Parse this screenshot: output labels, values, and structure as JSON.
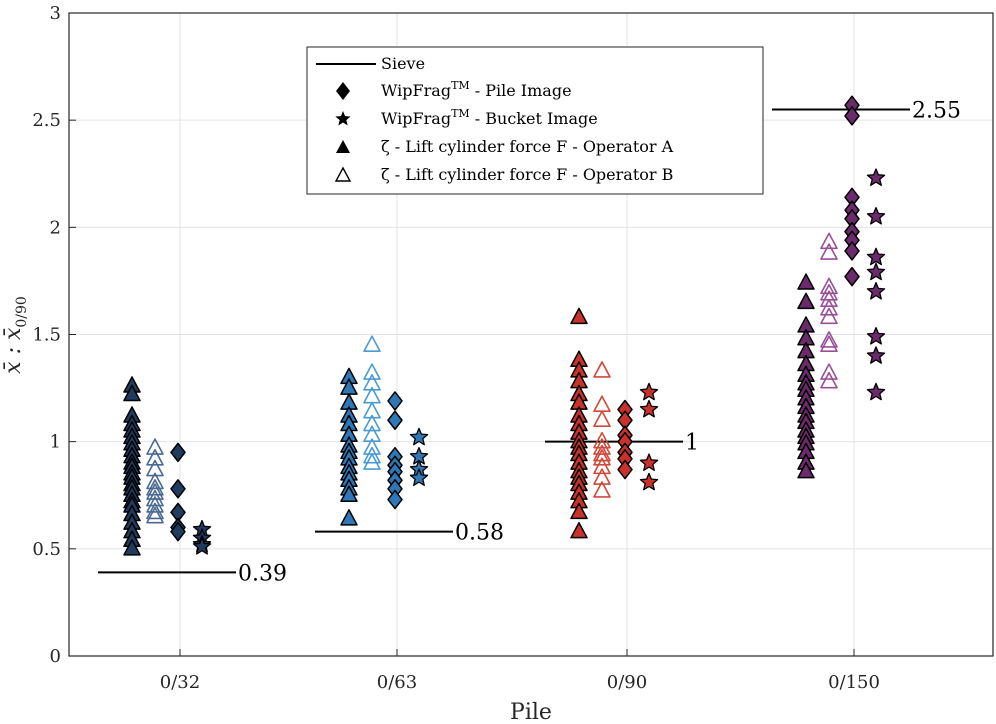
{
  "chart_data": {
    "type": "scatter",
    "title": "",
    "xlabel": "Pile",
    "ylabel": "x̄ : x̄",
    "ylabel_sub": "0/90",
    "ylim": [
      0,
      3
    ],
    "yticks": [
      "0",
      "0.5",
      "1",
      "1.5",
      "2",
      "2.5",
      "3"
    ],
    "ytick_values": [
      0,
      0.5,
      1,
      1.5,
      2,
      2.5,
      3
    ],
    "grid": true,
    "legend_position": "top-center",
    "categories": [
      "0/32",
      "0/63",
      "0/90",
      "0/150"
    ],
    "legend": {
      "sieve": "Sieve",
      "pile_image": "WipFrag - Pile Image",
      "pile_image_base": "WipFrag",
      "pile_image_sup": "TM",
      "pile_image_rest": " - Pile Image",
      "bucket_image_base": "WipFrag",
      "bucket_image_sup": "TM",
      "bucket_image_rest": " - Bucket Image",
      "operator_a": "ζ - Lift cylinder force F - Operator A",
      "operator_b": "ζ - Lift cylinder force F - Operator B"
    },
    "colors": {
      "0/32": {
        "fill": "#1f3b5e",
        "light": "#4a6a93"
      },
      "0/63": {
        "fill": "#2f78b8",
        "light": "#4a9bd4"
      },
      "0/90": {
        "fill": "#c8322a",
        "light": "#cf4a3a"
      },
      "0/150": {
        "fill": "#6b2a6b",
        "light": "#9a4f9a"
      }
    },
    "groups": [
      {
        "category": "0/32",
        "sieve": 0.39,
        "sieve_label": "0.39",
        "operator_a": [
          1.26,
          1.22,
          1.12,
          1.08,
          1.05,
          1.02,
          0.99,
          0.96,
          0.93,
          0.9,
          0.88,
          0.85,
          0.83,
          0.8,
          0.78,
          0.75,
          0.72,
          0.7,
          0.66,
          0.62,
          0.58,
          0.54,
          0.5
        ],
        "operator_b": [
          0.97,
          0.92,
          0.87,
          0.81,
          0.78,
          0.76,
          0.73,
          0.7,
          0.67,
          0.65
        ],
        "pile_image": [
          0.95,
          0.78,
          0.67,
          0.6,
          0.58
        ],
        "bucket_image": [
          0.59,
          0.55,
          0.52,
          0.51
        ]
      },
      {
        "category": "0/63",
        "sieve": 0.58,
        "sieve_label": "0.58",
        "operator_a": [
          1.3,
          1.25,
          1.18,
          1.12,
          1.08,
          1.03,
          0.98,
          0.95,
          0.92,
          0.88,
          0.85,
          0.82,
          0.78,
          0.75,
          0.64
        ],
        "operator_b": [
          1.45,
          1.32,
          1.27,
          1.21,
          1.14,
          1.08,
          1.03,
          0.97,
          0.93,
          0.9
        ],
        "pile_image": [
          1.19,
          1.1,
          0.93,
          0.89,
          0.86,
          0.82,
          0.78,
          0.73
        ],
        "bucket_image": [
          1.02,
          0.93,
          0.87,
          0.83
        ]
      },
      {
        "category": "0/90",
        "sieve": 1.0,
        "sieve_label": "1",
        "operator_a": [
          1.58,
          1.38,
          1.33,
          1.28,
          1.22,
          1.18,
          1.12,
          1.08,
          1.04,
          1.0,
          0.97,
          0.94,
          0.9,
          0.86,
          0.83,
          0.8,
          0.76,
          0.72,
          0.67,
          0.58
        ],
        "operator_b": [
          1.33,
          1.17,
          1.1,
          1.0,
          0.97,
          0.94,
          0.92,
          0.88,
          0.83,
          0.77
        ],
        "pile_image": [
          1.15,
          1.1,
          1.03,
          1.0,
          0.95,
          0.92,
          0.87
        ],
        "bucket_image": [
          1.23,
          1.15,
          0.9,
          0.81
        ]
      },
      {
        "category": "0/150",
        "sieve": 2.55,
        "sieve_label": "2.55",
        "operator_a": [
          1.74,
          1.65,
          1.54,
          1.48,
          1.42,
          1.36,
          1.31,
          1.27,
          1.24,
          1.2,
          1.16,
          1.12,
          1.09,
          1.05,
          1.02,
          0.99,
          0.95,
          0.9,
          0.86
        ],
        "operator_b": [
          1.93,
          1.88,
          1.72,
          1.69,
          1.66,
          1.62,
          1.58,
          1.47,
          1.45,
          1.32,
          1.28
        ],
        "pile_image": [
          2.57,
          2.52,
          2.14,
          2.08,
          2.04,
          1.98,
          1.94,
          1.89,
          1.77
        ],
        "bucket_image": [
          2.23,
          2.05,
          1.86,
          1.79,
          1.7,
          1.49,
          1.4,
          1.23
        ]
      }
    ]
  }
}
